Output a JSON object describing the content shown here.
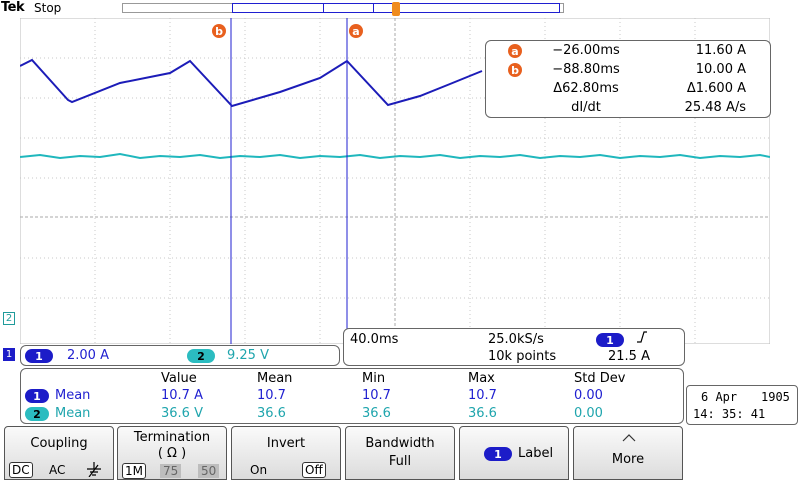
{
  "app": {
    "brand": "Tek",
    "acquisition_state": "Stop"
  },
  "cursor_labels": {
    "a": "a",
    "b": "b"
  },
  "cursor_readout": {
    "a_time": "−26.00ms",
    "a_value": "11.60 A",
    "b_time": "−88.80ms",
    "b_value": "10.00 A",
    "delta_time": "Δ62.80ms",
    "delta_value": "Δ1.600 A",
    "rate_label": "dI/dt",
    "rate_value": "25.48 A/s"
  },
  "channels": {
    "ch1": {
      "number": "1",
      "scale": "2.00 A",
      "color": "#1c1cc8"
    },
    "ch2": {
      "number": "2",
      "scale": "9.25 V",
      "color": "#2bbcc0"
    }
  },
  "timebase": {
    "scale": "40.0ms",
    "sample_rate": "25.0kS/s",
    "record_length": "10k points",
    "trigger_source": "1",
    "trigger_slope_icon": "rising-edge-icon",
    "trigger_level": "21.5 A"
  },
  "measurements": {
    "headers": [
      "Value",
      "Mean",
      "Min",
      "Max",
      "Std Dev"
    ],
    "rows": [
      {
        "ch": "1",
        "name": "Mean",
        "values": [
          "10.7 A",
          "10.7",
          "10.7",
          "10.7",
          "0.00"
        ]
      },
      {
        "ch": "2",
        "name": "Mean",
        "values": [
          "36.6 V",
          "36.6",
          "36.6",
          "36.6",
          "0.00"
        ]
      }
    ]
  },
  "datetime": {
    "date": "6 Apr",
    "year": "1905",
    "time": "14: 35: 41"
  },
  "menu": {
    "coupling": {
      "label": "Coupling",
      "dc": "DC",
      "ac": "AC",
      "gnd_icon": "ground-icon"
    },
    "termination": {
      "label": "Termination",
      "unit": "( Ω )",
      "opt1": "1M",
      "opt2": "75",
      "opt3": "50"
    },
    "invert": {
      "label": "Invert",
      "on": "On",
      "off": "Off"
    },
    "bandwidth": {
      "label": "Bandwidth",
      "value": "Full"
    },
    "label": {
      "ch": "1",
      "text": "Label"
    },
    "more": {
      "label": "More"
    }
  }
}
